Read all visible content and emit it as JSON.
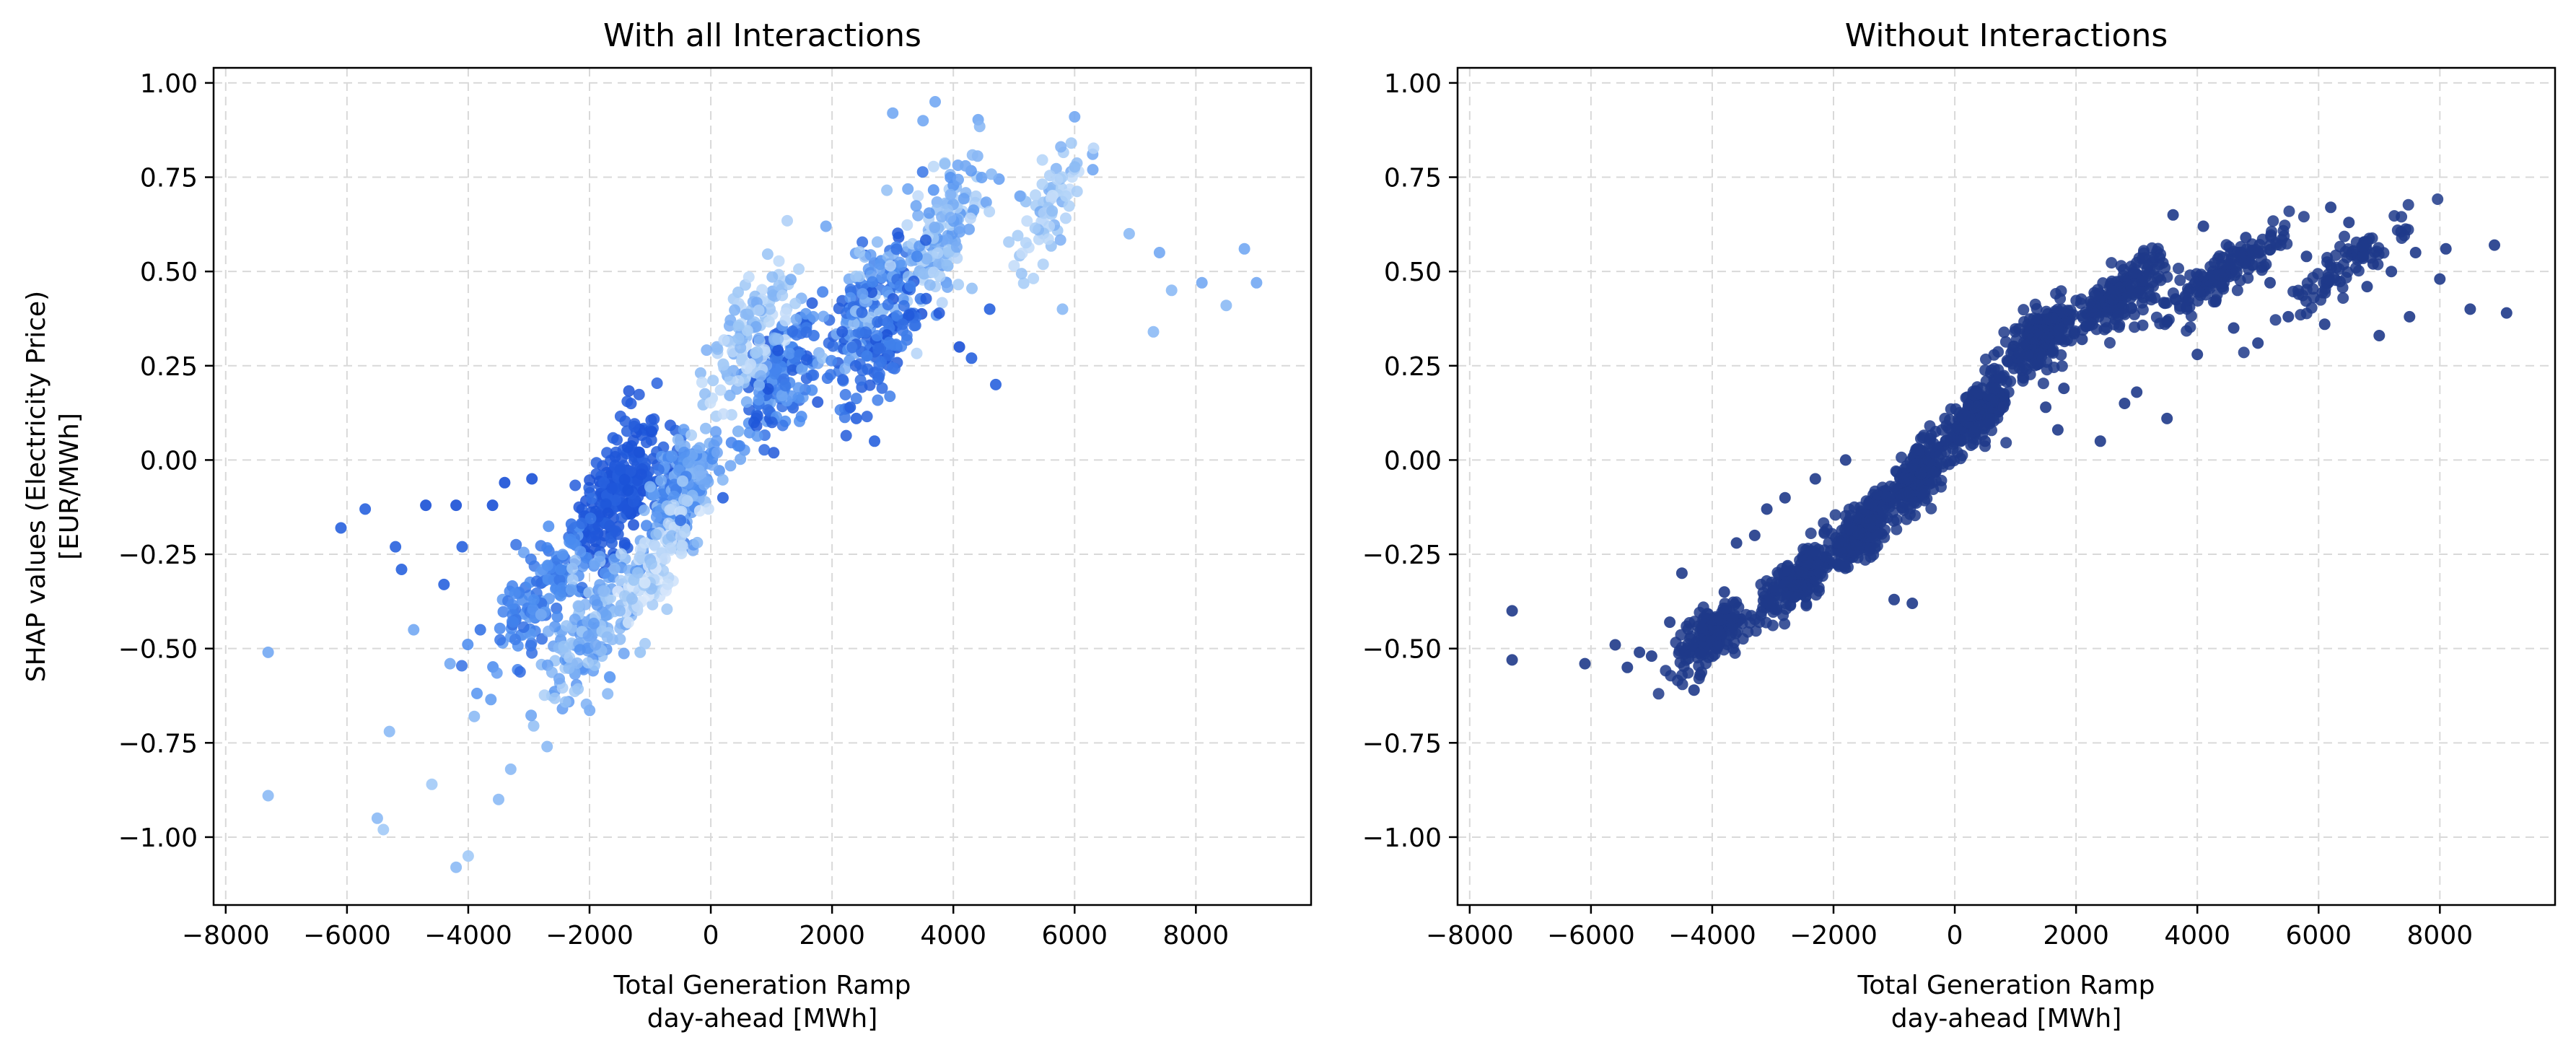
{
  "chart_data": [
    {
      "type": "scatter",
      "title": "With all Interactions",
      "xlabel": [
        "Total Generation Ramp",
        "day-ahead [MWh]"
      ],
      "ylabel": [
        "SHAP values (Electricity Price)",
        "[EUR/MWh]"
      ],
      "xlim": [
        -8200,
        9900
      ],
      "ylim": [
        -1.18,
        1.04
      ],
      "xticks": [
        -8000,
        -6000,
        -4000,
        -2000,
        0,
        2000,
        4000,
        6000,
        8000
      ],
      "xtick_labels": [
        "−8000",
        "−6000",
        "−4000",
        "−2000",
        "0",
        "2000",
        "4000",
        "6000",
        "8000"
      ],
      "yticks": [
        1.0,
        0.75,
        0.5,
        0.25,
        0.0,
        -0.25,
        -0.5,
        -0.75,
        -1.0
      ],
      "ytick_labels": [
        "1.00",
        "0.75",
        "0.50",
        "0.25",
        "0.00",
        "−0.25",
        "−0.50",
        "−0.75",
        "−1.00"
      ],
      "grid": true,
      "color_gradient": [
        "#1a50d6",
        "#4a8cf0",
        "#9cc6f6",
        "#dceafb"
      ],
      "points": [
        [
          -7300,
          -0.51,
          0.5
        ],
        [
          -7300,
          -0.89,
          0.6
        ],
        [
          -6100,
          -0.18,
          0.1
        ],
        [
          -5700,
          -0.13,
          0.1
        ],
        [
          -5500,
          -0.95,
          0.6
        ],
        [
          -5400,
          -0.98,
          0.7
        ],
        [
          -5300,
          -0.72,
          0.6
        ],
        [
          -5200,
          -0.23,
          0.1
        ],
        [
          -5100,
          -0.29,
          0.1
        ],
        [
          -4900,
          -0.45,
          0.5
        ],
        [
          -4700,
          -0.12,
          0.0
        ],
        [
          -4600,
          -0.86,
          0.7
        ],
        [
          -4400,
          -0.33,
          0.1
        ],
        [
          -4300,
          -0.54,
          0.5
        ],
        [
          -4200,
          -0.12,
          0.0
        ],
        [
          -4100,
          -0.23,
          0.1
        ],
        [
          -4000,
          -1.05,
          0.7
        ],
        [
          -3900,
          -0.68,
          0.6
        ],
        [
          -3800,
          -0.45,
          0.2
        ],
        [
          -3600,
          -0.12,
          0.0
        ],
        [
          -3500,
          -0.9,
          0.6
        ],
        [
          -3400,
          -0.06,
          0.0
        ],
        [
          -2950,
          -0.05,
          0.0
        ],
        [
          -2800,
          -0.41,
          0.5
        ],
        [
          -2700,
          -0.76,
          0.6
        ],
        [
          -2500,
          -0.58,
          0.5
        ],
        [
          -2300,
          -0.17,
          0.2
        ],
        [
          -1900,
          -0.49,
          0.5
        ],
        [
          -1700,
          -0.62,
          0.6
        ],
        [
          -1500,
          -0.4,
          0.6
        ],
        [
          -500,
          -0.16,
          0.2
        ],
        [
          200,
          -0.1,
          0.1
        ],
        [
          -4200,
          -1.08,
          0.6
        ],
        [
          -3300,
          -0.82,
          0.6
        ],
        [
          3700,
          0.95,
          0.5
        ],
        [
          3500,
          0.9,
          0.5
        ],
        [
          3000,
          0.92,
          0.5
        ],
        [
          4200,
          0.78,
          0.5
        ],
        [
          5100,
          0.7,
          0.5
        ],
        [
          6000,
          0.91,
          0.5
        ],
        [
          6300,
          0.77,
          0.5
        ],
        [
          7400,
          0.55,
          0.5
        ],
        [
          7600,
          0.45,
          0.6
        ],
        [
          8100,
          0.47,
          0.5
        ],
        [
          8500,
          0.41,
          0.6
        ],
        [
          8800,
          0.56,
          0.5
        ],
        [
          9000,
          0.47,
          0.5
        ],
        [
          6900,
          0.6,
          0.6
        ],
        [
          7300,
          0.34,
          0.6
        ],
        [
          5800,
          0.4,
          0.6
        ],
        [
          4300,
          0.27,
          0.1
        ],
        [
          4600,
          0.4,
          0.1
        ],
        [
          2300,
          0.14,
          0.1
        ],
        [
          2400,
          0.11,
          0.1
        ],
        [
          4100,
          0.3,
          0.0
        ],
        [
          2700,
          0.05,
          0.1
        ],
        [
          4700,
          0.2,
          0.1
        ],
        [
          3400,
          0.54,
          0.3
        ],
        [
          1700,
          0.33,
          0.2
        ],
        [
          1900,
          0.62,
          0.5
        ]
      ],
      "cloud": [
        [
          -1500,
          -0.07,
          0.6,
          0.13,
          260,
          0.0,
          0.1
        ],
        [
          -2800,
          -0.36,
          0.7,
          0.1,
          140,
          0.15,
          0.45
        ],
        [
          -2000,
          -0.45,
          0.6,
          0.13,
          160,
          0.35,
          0.75
        ],
        [
          -500,
          -0.08,
          0.5,
          0.12,
          180,
          0.2,
          0.6
        ],
        [
          1100,
          0.22,
          0.6,
          0.12,
          170,
          0.0,
          0.5
        ],
        [
          2600,
          0.43,
          0.6,
          0.12,
          160,
          0.0,
          0.7
        ],
        [
          3800,
          0.58,
          0.6,
          0.14,
          140,
          0.35,
          0.85
        ],
        [
          -900,
          -0.28,
          0.5,
          0.1,
          110,
          0.6,
          1.0
        ],
        [
          600,
          0.32,
          0.6,
          0.13,
          130,
          0.5,
          0.9
        ],
        [
          2900,
          0.3,
          0.6,
          0.1,
          100,
          0.0,
          0.3
        ],
        [
          5600,
          0.68,
          0.6,
          0.1,
          70,
          0.5,
          0.9
        ]
      ]
    },
    {
      "type": "scatter",
      "title": "Without Interactions",
      "xlabel": [
        "Total Generation Ramp",
        "day-ahead [MWh]"
      ],
      "xlim": [
        -8200,
        9900
      ],
      "ylim": [
        -1.18,
        1.04
      ],
      "xticks": [
        -8000,
        -6000,
        -4000,
        -2000,
        0,
        2000,
        4000,
        6000,
        8000
      ],
      "xtick_labels": [
        "−8000",
        "−6000",
        "−4000",
        "−2000",
        "0",
        "2000",
        "4000",
        "6000",
        "8000"
      ],
      "yticks": [
        1.0,
        0.75,
        0.5,
        0.25,
        0.0,
        -0.25,
        -0.5,
        -0.75,
        -1.0
      ],
      "ytick_labels": [
        "1.00",
        "0.75",
        "0.50",
        "0.25",
        "0.00",
        "−0.25",
        "−0.50",
        "−0.75",
        "−1.00"
      ],
      "grid": true,
      "color": "#1f3a8a",
      "points": [
        [
          -7300,
          -0.4
        ],
        [
          -7300,
          -0.53
        ],
        [
          -6100,
          -0.54
        ],
        [
          -5600,
          -0.49
        ],
        [
          -5400,
          -0.55
        ],
        [
          -5200,
          -0.51
        ],
        [
          -5000,
          -0.52
        ],
        [
          -4700,
          -0.43
        ],
        [
          -4500,
          -0.3
        ],
        [
          -4300,
          -0.61
        ],
        [
          -4200,
          -0.57
        ],
        [
          -3800,
          -0.35
        ],
        [
          -3600,
          -0.22
        ],
        [
          -3300,
          -0.2
        ],
        [
          -3100,
          -0.13
        ],
        [
          -2800,
          -0.1
        ],
        [
          -2300,
          -0.05
        ],
        [
          -1800,
          0.0
        ],
        [
          -1000,
          -0.37
        ],
        [
          -700,
          -0.38
        ],
        [
          500,
          0.05
        ],
        [
          800,
          0.14
        ],
        [
          1500,
          0.14
        ],
        [
          1800,
          0.19
        ],
        [
          1700,
          0.08
        ],
        [
          2100,
          0.32
        ],
        [
          2400,
          0.05
        ],
        [
          2800,
          0.15
        ],
        [
          3000,
          0.18
        ],
        [
          3500,
          0.11
        ],
        [
          3600,
          0.65
        ],
        [
          4100,
          0.62
        ],
        [
          4300,
          0.42
        ],
        [
          4600,
          0.35
        ],
        [
          5000,
          0.31
        ],
        [
          5200,
          0.47
        ],
        [
          5500,
          0.38
        ],
        [
          5800,
          0.54
        ],
        [
          6100,
          0.36
        ],
        [
          6200,
          0.67
        ],
        [
          6500,
          0.63
        ],
        [
          6800,
          0.46
        ],
        [
          7000,
          0.33
        ],
        [
          7200,
          0.5
        ],
        [
          7500,
          0.38
        ],
        [
          7600,
          0.55
        ],
        [
          8000,
          0.48
        ],
        [
          8100,
          0.56
        ],
        [
          8500,
          0.4
        ],
        [
          8900,
          0.57
        ],
        [
          9100,
          0.39
        ],
        [
          6900,
          0.52
        ],
        [
          4800,
          0.59
        ],
        [
          3300,
          0.43
        ],
        [
          4000,
          0.28
        ]
      ],
      "cloud": [
        [
          -4000,
          -0.46,
          0.55,
          0.06,
          170
        ],
        [
          -2600,
          -0.32,
          0.55,
          0.06,
          200
        ],
        [
          -1500,
          -0.18,
          0.5,
          0.06,
          260
        ],
        [
          -600,
          -0.04,
          0.4,
          0.06,
          220
        ],
        [
          400,
          0.12,
          0.45,
          0.06,
          200
        ],
        [
          1400,
          0.32,
          0.5,
          0.06,
          220
        ],
        [
          2700,
          0.44,
          0.65,
          0.06,
          200
        ],
        [
          4500,
          0.5,
          0.8,
          0.05,
          160
        ],
        [
          6500,
          0.52,
          0.8,
          0.05,
          90
        ]
      ]
    }
  ]
}
